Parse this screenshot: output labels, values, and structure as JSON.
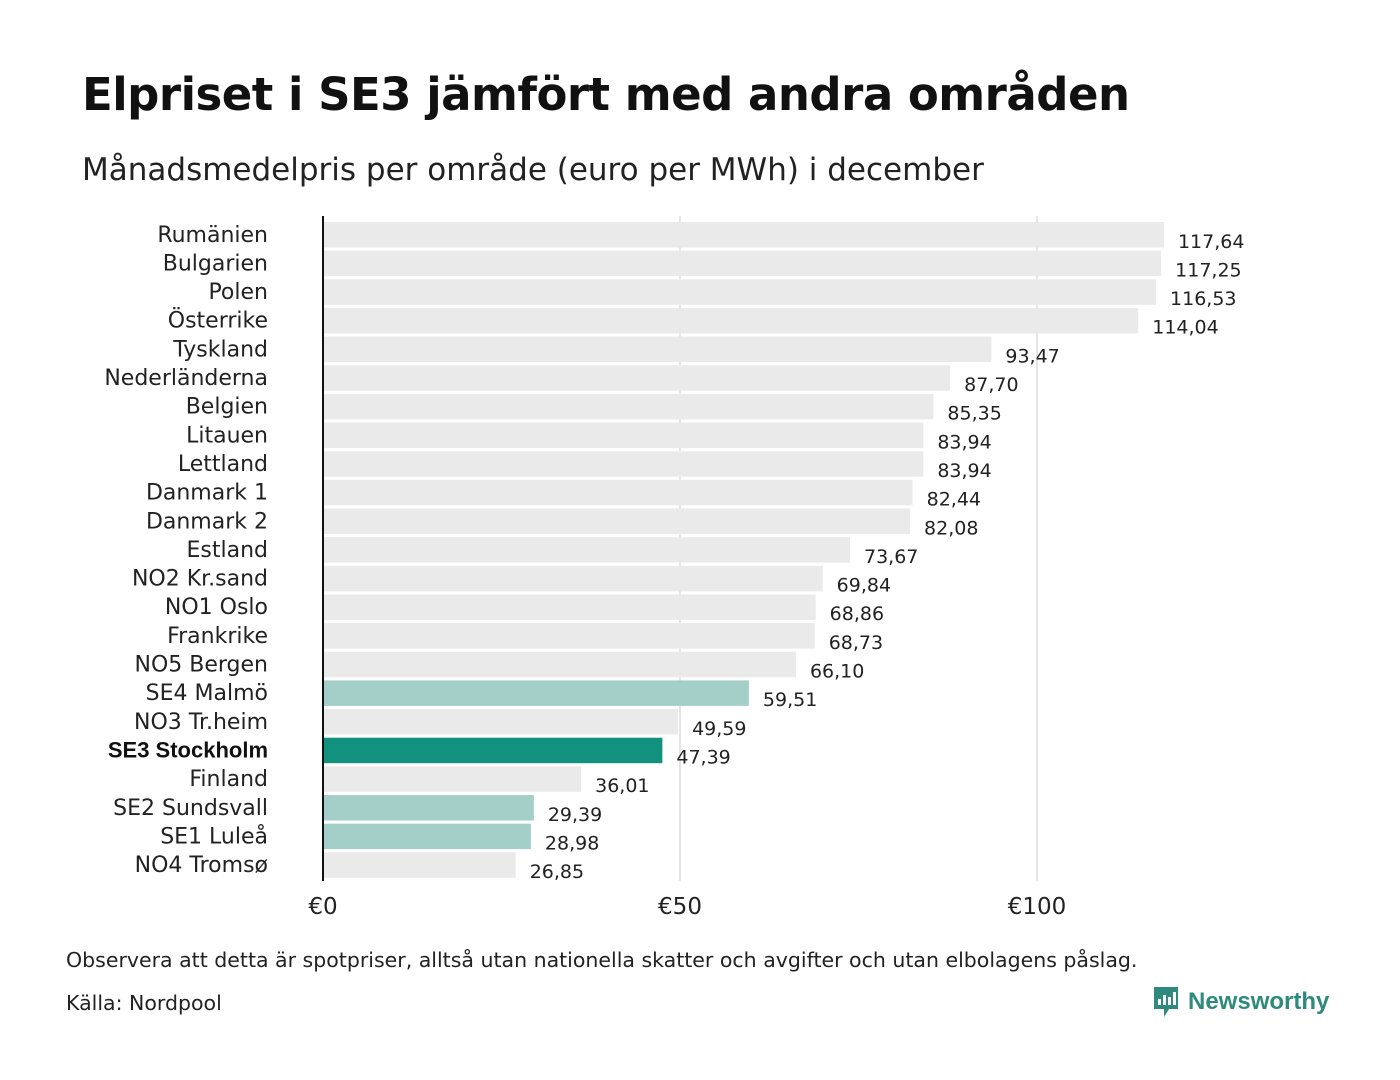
{
  "title": "Elpriset i SE3 jämfört med andra områden",
  "subtitle": "Månadsmedelpris per område (euro per MWh) i december",
  "footnote": "Observera att detta är spotpriser, alltså utan nationella skatter och avgifter och utan elbolagens påslag.",
  "source": "Källa: Nordpool",
  "brand": {
    "name": "Newsworthy",
    "icon": "newsworthy-logo-icon"
  },
  "colors": {
    "default_bar": "#eaeaea",
    "swedish_bar": "#a3cfc8",
    "highlight_bar": "#13917f",
    "axis": "#111111",
    "grid": "#d4d4d4",
    "brand": "#2e8a7c"
  },
  "chart_data": {
    "type": "bar",
    "orientation": "horizontal",
    "title": "Elpriset i SE3 jämfört med andra områden",
    "xlabel": "",
    "ylabel": "",
    "xlim": [
      0,
      125
    ],
    "x_ticks": [
      0,
      50,
      100
    ],
    "x_tick_labels": [
      "€0",
      "€50",
      "€100"
    ],
    "grid": true,
    "categories": [
      "Rumänien",
      "Bulgarien",
      "Polen",
      "Österrike",
      "Tyskland",
      "Nederländerna",
      "Belgien",
      "Litauen",
      "Lettland",
      "Danmark 1",
      "Danmark 2",
      "Estland",
      "NO2 Kr.sand",
      "NO1 Oslo",
      "Frankrike",
      "NO5 Bergen",
      "SE4 Malmö",
      "NO3 Tr.heim",
      "SE3 Stockholm",
      "Finland",
      "SE2 Sundsvall",
      "SE1 Luleå",
      "NO4 Tromsø"
    ],
    "values": [
      117.64,
      117.25,
      116.53,
      114.04,
      93.47,
      87.7,
      85.35,
      83.94,
      83.94,
      82.44,
      82.08,
      73.67,
      69.84,
      68.86,
      68.73,
      66.1,
      59.51,
      49.59,
      47.39,
      36.01,
      29.39,
      28.98,
      26.85
    ],
    "value_labels": [
      "117,64",
      "117,25",
      "116,53",
      "114,04",
      "93,47",
      "87,70",
      "85,35",
      "83,94",
      "83,94",
      "82,44",
      "82,08",
      "73,67",
      "69,84",
      "68,86",
      "68,73",
      "66,10",
      "59,51",
      "49,59",
      "47,39",
      "36,01",
      "29,39",
      "28,98",
      "26,85"
    ],
    "styles": [
      "default",
      "default",
      "default",
      "default",
      "default",
      "default",
      "default",
      "default",
      "default",
      "default",
      "default",
      "default",
      "default",
      "default",
      "default",
      "default",
      "swedish",
      "default",
      "highlight",
      "default",
      "swedish",
      "swedish",
      "default"
    ],
    "bold_labels": [
      "SE3 Stockholm"
    ]
  }
}
